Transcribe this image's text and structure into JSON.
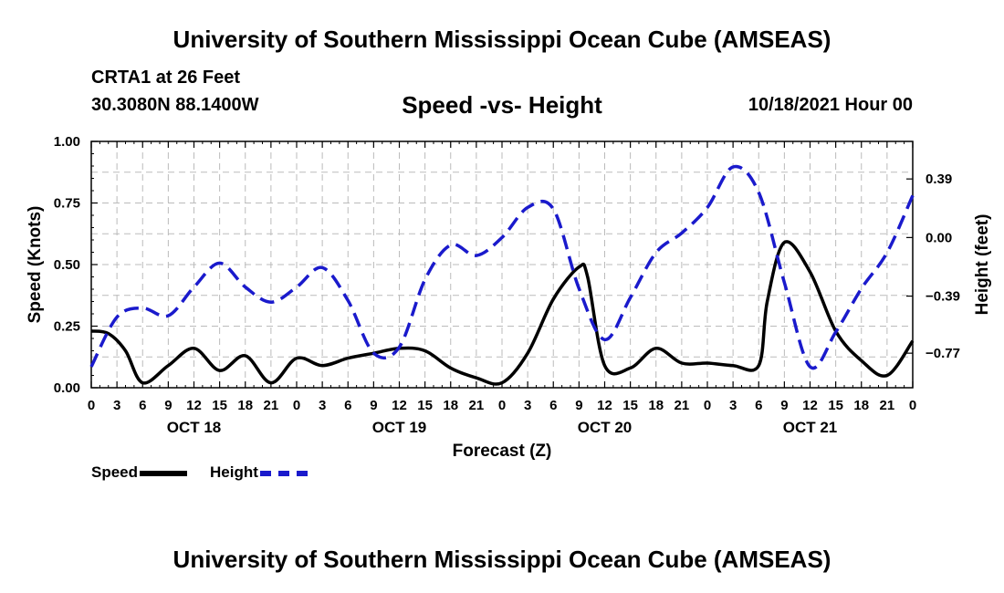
{
  "header": {
    "title": "University of Southern Mississippi Ocean Cube (AMSEAS)",
    "station": "CRTA1 at 26 Feet",
    "coords": "30.3080N  88.1400W",
    "run_time": "10/18/2021 Hour 00"
  },
  "footer": {
    "title": "University of Southern Mississippi Ocean Cube (AMSEAS)"
  },
  "legend": {
    "speed_label": "Speed",
    "height_label": "Height"
  },
  "chart_data": {
    "type": "line",
    "title": "Speed -vs- Height",
    "xlabel": "Forecast (Z)",
    "ylabel": "Speed (Knots)",
    "y2label": "Height (feet)",
    "xlim": [
      0,
      96
    ],
    "ylim": [
      0,
      1
    ],
    "y2lim": [
      -1.0,
      0.64
    ],
    "x_ticks": [
      0,
      3,
      6,
      9,
      12,
      15,
      18,
      21,
      24,
      27,
      30,
      33,
      36,
      39,
      42,
      45,
      48,
      51,
      54,
      57,
      60,
      63,
      66,
      69,
      72,
      75,
      78,
      81,
      84,
      87,
      90,
      93,
      96
    ],
    "x_tick_labels": [
      "0",
      "3",
      "6",
      "9",
      "12",
      "15",
      "18",
      "21",
      "0",
      "3",
      "6",
      "9",
      "12",
      "15",
      "18",
      "21",
      "0",
      "3",
      "6",
      "9",
      "12",
      "15",
      "18",
      "21",
      "0",
      "3",
      "6",
      "9",
      "12",
      "15",
      "18",
      "21",
      "0"
    ],
    "y_ticks": [
      0,
      0.25,
      0.5,
      0.75,
      1.0
    ],
    "y_tick_labels": [
      "0.00",
      "0.25",
      "0.50",
      "0.75",
      "1.00"
    ],
    "y2_ticks": [
      -0.77,
      -0.39,
      0.0,
      0.39
    ],
    "y2_tick_labels": [
      "−0.77",
      "−0.39",
      "0.00",
      "0.39"
    ],
    "day_labels": [
      {
        "x": 12,
        "label": "OCT 18"
      },
      {
        "x": 36,
        "label": "OCT 19"
      },
      {
        "x": 60,
        "label": "OCT 20"
      },
      {
        "x": 84,
        "label": "OCT 21"
      }
    ],
    "series": [
      {
        "name": "Speed",
        "axis": "left",
        "color": "#000000",
        "style": "solid",
        "x": [
          0,
          2,
          4,
          6,
          9,
          12,
          15,
          18,
          21,
          24,
          27,
          30,
          33,
          36,
          39,
          42,
          45,
          48,
          51,
          54,
          57,
          58,
          60,
          63,
          66,
          69,
          72,
          75,
          78,
          79,
          81,
          84,
          87,
          90,
          93,
          96
        ],
        "values": [
          0.23,
          0.22,
          0.15,
          0.02,
          0.09,
          0.16,
          0.07,
          0.13,
          0.02,
          0.12,
          0.09,
          0.12,
          0.14,
          0.16,
          0.15,
          0.08,
          0.04,
          0.02,
          0.14,
          0.36,
          0.49,
          0.45,
          0.09,
          0.08,
          0.16,
          0.1,
          0.1,
          0.09,
          0.09,
          0.35,
          0.59,
          0.47,
          0.23,
          0.11,
          0.05,
          0.19
        ]
      },
      {
        "name": "Height",
        "axis": "right",
        "color": "#1a1acc",
        "style": "dashed",
        "x": [
          0,
          3,
          6,
          9,
          12,
          15,
          18,
          21,
          24,
          27,
          30,
          33,
          36,
          39,
          42,
          45,
          48,
          51,
          54,
          57,
          60,
          63,
          66,
          69,
          72,
          75,
          78,
          81,
          84,
          87,
          90,
          93,
          96
        ],
        "values": [
          -0.86,
          -0.53,
          -0.47,
          -0.52,
          -0.33,
          -0.17,
          -0.33,
          -0.43,
          -0.33,
          -0.2,
          -0.42,
          -0.77,
          -0.73,
          -0.28,
          -0.05,
          -0.12,
          0.0,
          0.2,
          0.19,
          -0.34,
          -0.68,
          -0.4,
          -0.1,
          0.03,
          0.2,
          0.47,
          0.3,
          -0.3,
          -0.86,
          -0.63,
          -0.34,
          -0.1,
          0.28
        ]
      }
    ]
  }
}
